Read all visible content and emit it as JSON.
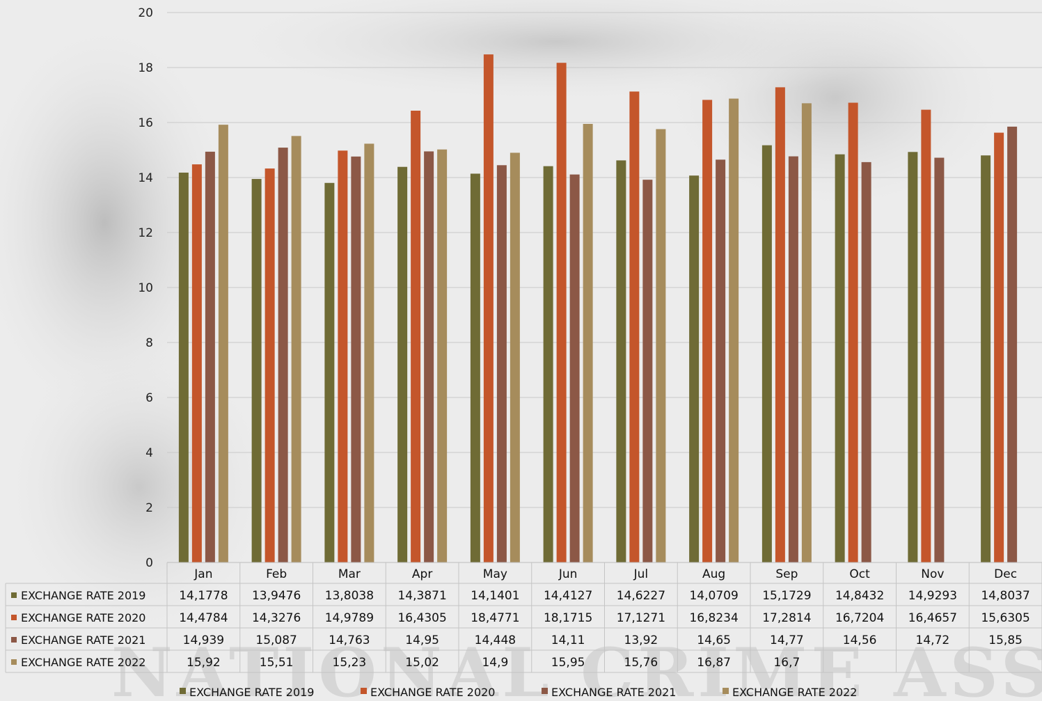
{
  "colors": {
    "series_2019": "#6f6b35",
    "series_2020": "#c4562b",
    "series_2021": "#8c5846",
    "series_2022": "#a68c5c"
  },
  "chart_data": {
    "type": "bar",
    "categories": [
      "Jan",
      "Feb",
      "Mar",
      "Apr",
      "May",
      "Jun",
      "Jul",
      "Aug",
      "Sep",
      "Oct",
      "Nov",
      "Dec"
    ],
    "ylim": [
      0,
      20
    ],
    "yticks": [
      "0",
      "2",
      "4",
      "6",
      "8",
      "10",
      "12",
      "14",
      "16",
      "18",
      "20"
    ],
    "grid": true,
    "legend_position": "bottom",
    "data_table": true,
    "series": [
      {
        "name": "EXCHANGE RATE 2019",
        "values": [
          14.1778,
          13.9476,
          13.8038,
          14.3871,
          14.1401,
          14.4127,
          14.6227,
          14.0709,
          15.1729,
          14.8432,
          14.9293,
          14.8037
        ],
        "labels": [
          "14,1778",
          "13,9476",
          "13,8038",
          "14,3871",
          "14,1401",
          "14,4127",
          "14,6227",
          "14,0709",
          "15,1729",
          "14,8432",
          "14,9293",
          "14,8037"
        ]
      },
      {
        "name": "EXCHANGE RATE 2020",
        "values": [
          14.4784,
          14.3276,
          14.9789,
          16.4305,
          18.4771,
          18.1715,
          17.1271,
          16.8234,
          17.2814,
          16.7204,
          16.4657,
          15.6305
        ],
        "labels": [
          "14,4784",
          "14,3276",
          "14,9789",
          "16,4305",
          "18,4771",
          "18,1715",
          "17,1271",
          "16,8234",
          "17,2814",
          "16,7204",
          "16,4657",
          "15,6305"
        ]
      },
      {
        "name": "EXCHANGE RATE 2021",
        "values": [
          14.939,
          15.087,
          14.763,
          14.95,
          14.448,
          14.11,
          13.92,
          14.65,
          14.77,
          14.56,
          14.72,
          15.85
        ],
        "labels": [
          "14,939",
          "15,087",
          "14,763",
          "14,95",
          "14,448",
          "14,11",
          "13,92",
          "14,65",
          "14,77",
          "14,56",
          "14,72",
          "15,85"
        ]
      },
      {
        "name": "EXCHANGE RATE 2022",
        "values": [
          15.92,
          15.51,
          15.23,
          15.02,
          14.9,
          15.95,
          15.76,
          16.87,
          16.7,
          null,
          null,
          null
        ],
        "labels": [
          "15,92",
          "15,51",
          "15,23",
          "15,02",
          "14,9",
          "15,95",
          "15,76",
          "16,87",
          "16,7",
          "",
          "",
          ""
        ]
      }
    ]
  },
  "watermark": "NATIONAL CRIME ASSIST"
}
